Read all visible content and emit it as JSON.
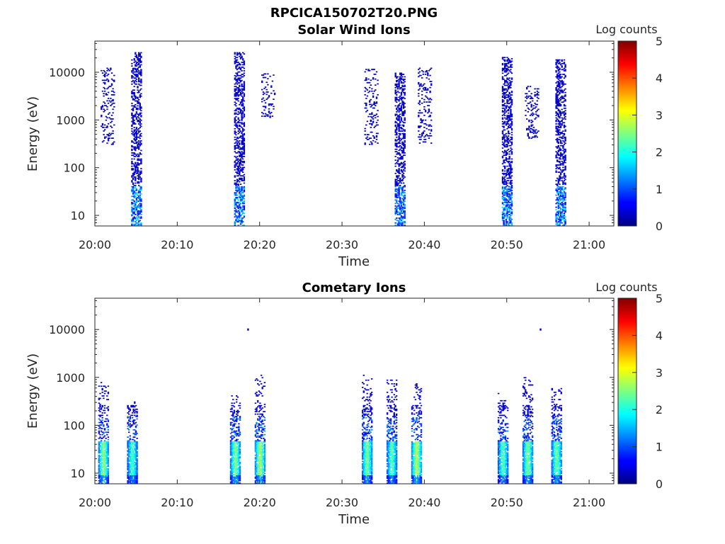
{
  "figure_title": "RPCICA150702T20.PNG",
  "chart_data": [
    {
      "type": "heatmap",
      "title": "Solar Wind Ions",
      "xlabel": "Time",
      "ylabel": "Energy (eV)",
      "x_range": [
        "20:00",
        "21:03"
      ],
      "y_scale": "log",
      "ylim": [
        6,
        45000
      ],
      "x_ticks": [
        "20:00",
        "20:10",
        "20:20",
        "20:30",
        "20:40",
        "20:50",
        "21:00"
      ],
      "y_ticks": [
        "10",
        "100",
        "1000",
        "10000"
      ],
      "colorbar": {
        "label": "Log counts",
        "range": [
          0,
          5
        ],
        "ticks": [
          "0",
          "1",
          "2",
          "3",
          "4",
          "5"
        ]
      },
      "bursts": [
        {
          "time": "20:01.5",
          "emin": 300,
          "emax": 12000,
          "sparse": true
        },
        {
          "time": "20:05",
          "emin": 6,
          "emax": 25000
        },
        {
          "time": "20:17.5",
          "emin": 6,
          "emax": 25000
        },
        {
          "time": "20:21",
          "emin": 1100,
          "emax": 9000,
          "sparse": true
        },
        {
          "time": "20:33.5",
          "emin": 300,
          "emax": 12000,
          "sparse": true
        },
        {
          "time": "20:37",
          "emin": 6,
          "emax": 9500
        },
        {
          "time": "20:40",
          "emin": 300,
          "emax": 12000,
          "sparse": true
        },
        {
          "time": "20:50",
          "emin": 6,
          "emax": 20000
        },
        {
          "time": "20:53",
          "emin": 400,
          "emax": 5000,
          "sparse": true
        },
        {
          "time": "20:56.5",
          "emin": 6,
          "emax": 18000
        }
      ]
    },
    {
      "type": "heatmap",
      "title": "Cometary Ions",
      "xlabel": "Time",
      "ylabel": "Energy (eV)",
      "x_range": [
        "20:00",
        "21:03"
      ],
      "y_scale": "log",
      "ylim": [
        6,
        45000
      ],
      "x_ticks": [
        "20:00",
        "20:10",
        "20:20",
        "20:30",
        "20:40",
        "20:50",
        "21:00"
      ],
      "y_ticks": [
        "10",
        "100",
        "1000",
        "10000"
      ],
      "colorbar": {
        "label": "Log counts",
        "range": [
          0,
          5
        ],
        "ticks": [
          "0",
          "1",
          "2",
          "3",
          "4",
          "5"
        ]
      },
      "bursts": [
        {
          "time": "20:01",
          "emin": 6,
          "emax": 800,
          "peak": 2.7
        },
        {
          "time": "20:04.5",
          "emin": 6,
          "emax": 300,
          "peak": 2.3
        },
        {
          "time": "20:17",
          "emin": 6,
          "emax": 400,
          "peak": 2.6
        },
        {
          "time": "20:20",
          "emin": 6,
          "emax": 1200,
          "peak": 2.8
        },
        {
          "time": "20:33",
          "emin": 6,
          "emax": 1200,
          "peak": 2.6
        },
        {
          "time": "20:36",
          "emin": 6,
          "emax": 900,
          "peak": 2.4
        },
        {
          "time": "20:39",
          "emin": 6,
          "emax": 800,
          "peak": 2.9
        },
        {
          "time": "20:49.5",
          "emin": 6,
          "emax": 500,
          "peak": 2.4
        },
        {
          "time": "20:52.5",
          "emin": 6,
          "emax": 1000,
          "peak": 2.6
        },
        {
          "time": "20:56",
          "emin": 6,
          "emax": 600,
          "peak": 2.5
        }
      ],
      "isolated_points": [
        {
          "time": "20:18.5",
          "energy": 10000
        },
        {
          "time": "20:54",
          "energy": 10000
        }
      ]
    }
  ]
}
